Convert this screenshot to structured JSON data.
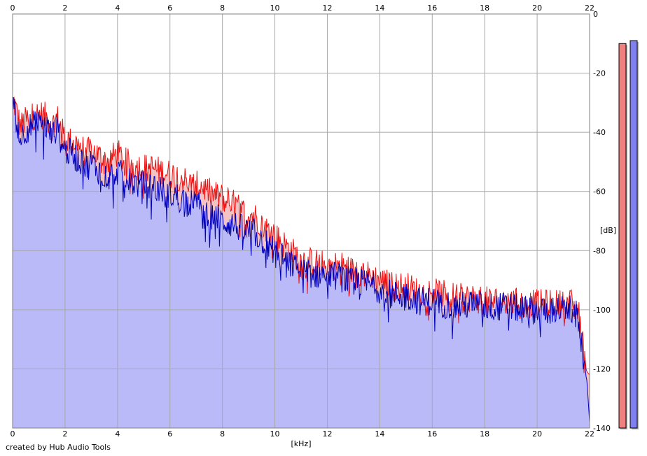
{
  "credit": "created by Hub Audio Tools",
  "chart_data": {
    "type": "area",
    "xlabel": "[kHz]",
    "ylabel": "[dB]",
    "xlim": [
      0,
      22
    ],
    "ylim": [
      -140,
      0
    ],
    "x_ticks": [
      0,
      2,
      4,
      6,
      8,
      10,
      12,
      14,
      16,
      18,
      20,
      22
    ],
    "y_ticks": [
      0,
      -20,
      -40,
      -60,
      -80,
      -100,
      -120,
      -140
    ],
    "grid": true,
    "colors": {
      "red_line": "#ee1111",
      "red_fill": "#f4c4c4",
      "blue_line": "#0000bb",
      "blue_fill": "#babaf8",
      "grid": "#a8a8a8",
      "red_meter": "#f08080",
      "blue_meter": "#8080f0"
    },
    "series": [
      {
        "color": "red",
        "x": [
          0.05,
          0.15,
          0.3,
          0.5,
          0.7,
          0.9,
          1.1,
          1.3,
          1.5,
          1.7,
          1.9,
          2.0,
          2.2,
          2.5,
          2.8,
          3.0,
          3.3,
          3.6,
          4.0,
          4.3,
          4.6,
          5.0,
          5.3,
          5.6,
          6.0,
          6.4,
          6.8,
          7.2,
          7.6,
          8.0,
          8.4,
          8.8,
          9.2,
          9.6,
          10.0,
          10.5,
          11.0,
          11.5,
          12.0,
          12.5,
          13.0,
          13.5,
          14.0,
          14.5,
          15.0,
          15.5,
          16.0,
          16.5,
          17.0,
          17.5,
          18.0,
          18.5,
          19.0,
          19.5,
          20.0,
          20.5,
          21.0,
          21.3,
          21.5,
          21.6,
          21.7,
          21.8,
          21.9,
          22.0
        ],
        "values": [
          -30,
          -33,
          -38,
          -36,
          -35,
          -34,
          -34,
          -35,
          -38,
          -35,
          -40,
          -42,
          -43,
          -44,
          -47,
          -46,
          -48,
          -50,
          -47,
          -50,
          -51,
          -52,
          -52,
          -53,
          -54,
          -55,
          -58,
          -58,
          -61,
          -62,
          -64,
          -67,
          -68,
          -72,
          -75,
          -79,
          -83,
          -84,
          -85,
          -85,
          -87,
          -88,
          -90,
          -92,
          -92,
          -94,
          -94,
          -95,
          -96,
          -96,
          -97,
          -97,
          -97,
          -98,
          -98,
          -98,
          -98,
          -98,
          -100,
          -102,
          -108,
          -118,
          -121,
          -122
        ]
      },
      {
        "color": "blue",
        "x": [
          0.05,
          0.15,
          0.3,
          0.5,
          0.7,
          0.9,
          1.1,
          1.3,
          1.5,
          1.7,
          1.9,
          2.0,
          2.2,
          2.5,
          2.8,
          3.0,
          3.3,
          3.6,
          4.0,
          4.3,
          4.6,
          5.0,
          5.3,
          5.6,
          6.0,
          6.4,
          6.8,
          7.2,
          7.6,
          8.0,
          8.4,
          8.8,
          9.2,
          9.6,
          10.0,
          10.5,
          11.0,
          11.5,
          12.0,
          12.5,
          13.0,
          13.5,
          14.0,
          14.5,
          15.0,
          15.5,
          16.0,
          16.5,
          17.0,
          17.5,
          18.0,
          18.5,
          19.0,
          19.5,
          20.0,
          20.5,
          21.0,
          21.3,
          21.5,
          21.6,
          21.7,
          21.8,
          21.9,
          22.0
        ],
        "values": [
          -28,
          -36,
          -42,
          -39,
          -38,
          -37,
          -38,
          -38,
          -41,
          -39,
          -44,
          -46,
          -47,
          -49,
          -52,
          -50,
          -53,
          -55,
          -53,
          -56,
          -57,
          -58,
          -58,
          -59,
          -61,
          -62,
          -64,
          -65,
          -68,
          -70,
          -71,
          -73,
          -74,
          -77,
          -80,
          -84,
          -87,
          -88,
          -88,
          -89,
          -91,
          -91,
          -93,
          -95,
          -95,
          -97,
          -97,
          -98,
          -99,
          -98,
          -99,
          -99,
          -99,
          -100,
          -100,
          -100,
          -100,
          -100,
          -102,
          -104,
          -111,
          -120,
          -124,
          -138
        ]
      }
    ],
    "meters": [
      {
        "color": "red",
        "level_db": -10
      },
      {
        "color": "blue",
        "level_db": -9
      }
    ]
  }
}
